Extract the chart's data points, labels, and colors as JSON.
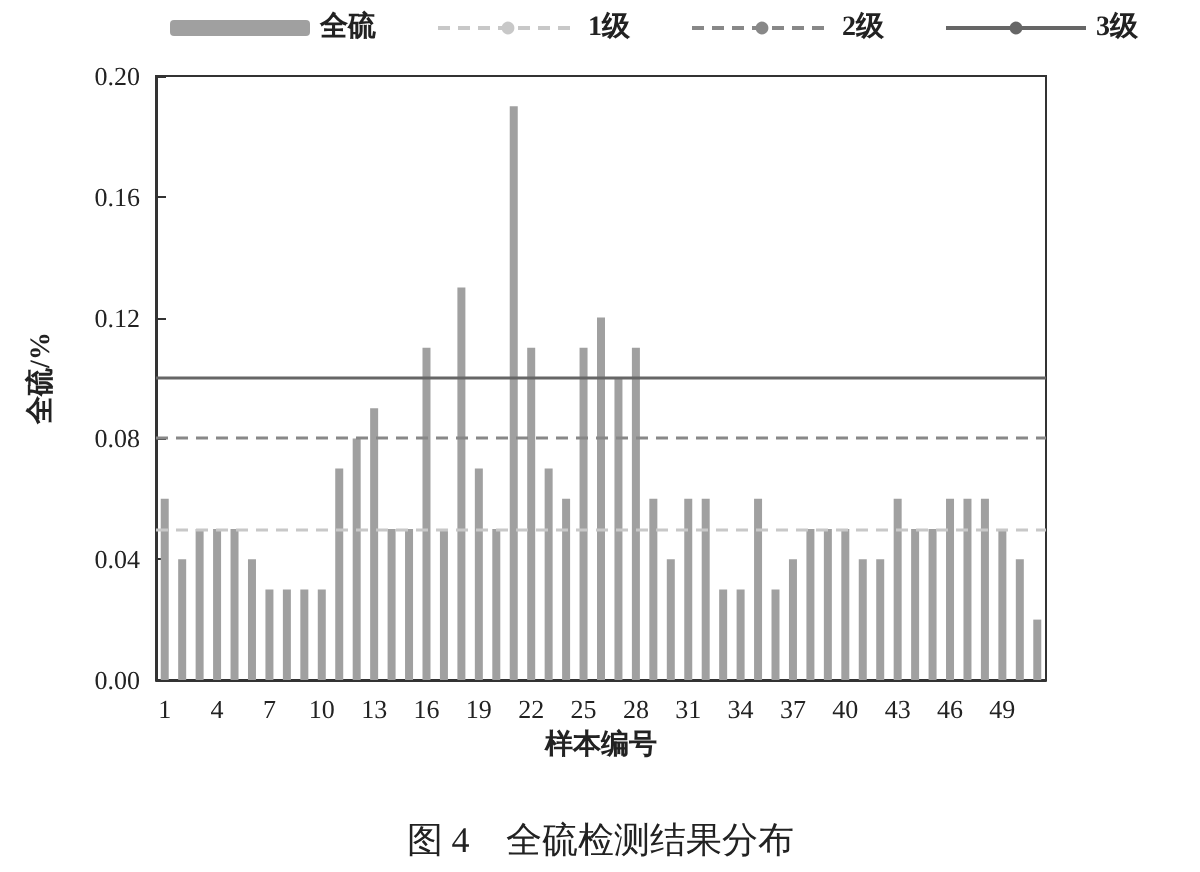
{
  "chart_data": {
    "type": "bar",
    "title": "图 4　全硫检测结果分布",
    "xlabel": "样本编号",
    "ylabel": "全硫/%",
    "categories": [
      "1",
      null,
      null,
      "4",
      null,
      null,
      "7",
      null,
      null,
      "10",
      null,
      null,
      "13",
      null,
      null,
      "16",
      null,
      null,
      "19",
      null,
      null,
      "22",
      null,
      null,
      "25",
      null,
      null,
      "28",
      null,
      null,
      "31",
      null,
      null,
      "34",
      null,
      null,
      "37",
      null,
      null,
      "40",
      null,
      null,
      "43",
      null,
      null,
      "46",
      null,
      null,
      "49",
      null,
      null
    ],
    "series": [
      {
        "name": "全硫",
        "color": "#a0a0a0",
        "values": [
          0.06,
          0.04,
          0.05,
          0.05,
          0.05,
          0.04,
          0.03,
          0.03,
          0.03,
          0.03,
          0.07,
          0.08,
          0.09,
          0.05,
          0.05,
          0.11,
          0.05,
          0.13,
          0.07,
          0.05,
          0.19,
          0.11,
          0.07,
          0.06,
          0.11,
          0.12,
          0.1,
          0.11,
          0.06,
          0.04,
          0.06,
          0.06,
          0.03,
          0.03,
          0.06,
          0.03,
          0.04,
          0.05,
          0.05,
          0.05,
          0.04,
          0.04,
          0.06,
          0.05,
          0.05,
          0.06,
          0.06,
          0.06,
          0.05,
          0.04,
          0.02
        ]
      }
    ],
    "ylim": [
      0,
      0.2
    ],
    "yticks": [
      {
        "value": 0,
        "label": "0.00"
      },
      {
        "value": 0.04,
        "label": "0.04"
      },
      {
        "value": 0.08,
        "label": "0.08"
      },
      {
        "value": 0.12,
        "label": "0.12"
      },
      {
        "value": 0.16,
        "label": "0.16"
      },
      {
        "value": 0.2,
        "label": "0.20"
      }
    ],
    "ref_lines": [
      {
        "axis": "y",
        "value": 0.05,
        "label": "1级",
        "color": "#c8c8c8",
        "line_style": "dashed"
      },
      {
        "axis": "y",
        "value": 0.08,
        "label": "2级",
        "color": "#888888",
        "line_style": "dashed"
      },
      {
        "axis": "y",
        "value": 0.1,
        "label": "3级",
        "color": "#666666",
        "line_style": "solid"
      }
    ],
    "legend": "top",
    "grid": false
  }
}
